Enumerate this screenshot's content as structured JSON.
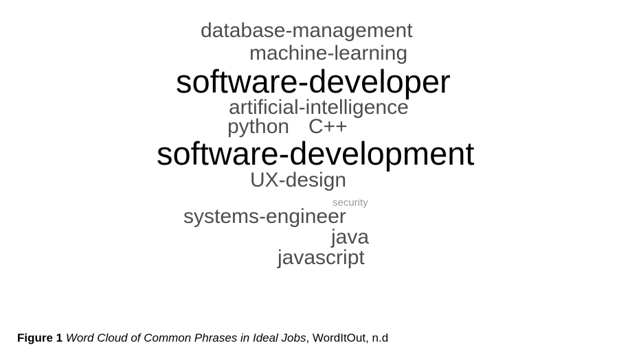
{
  "word_cloud": {
    "words": [
      {
        "text": "database-management",
        "color": "#4d4d4d"
      },
      {
        "text": "machine-learning",
        "color": "#4d4d4d"
      },
      {
        "text": "software-developer",
        "color": "#000000"
      },
      {
        "text": "artificial-intelligence",
        "color": "#4d4d4d"
      },
      {
        "text": "python",
        "color": "#4d4d4d"
      },
      {
        "text": "C++",
        "color": "#4d4d4d"
      },
      {
        "text": "software-development",
        "color": "#000000"
      },
      {
        "text": "UX-design",
        "color": "#4d4d4d"
      },
      {
        "text": "security",
        "color": "#999999"
      },
      {
        "text": "systems-engineer",
        "color": "#4d4d4d"
      },
      {
        "text": "java",
        "color": "#4d4d4d"
      },
      {
        "text": "javascript",
        "color": "#4d4d4d"
      }
    ]
  },
  "caption": {
    "label": "Figure 1",
    "title": "Word Cloud of Common Phrases in Ideal Jobs",
    "source": ", WordItOut, n.d"
  }
}
